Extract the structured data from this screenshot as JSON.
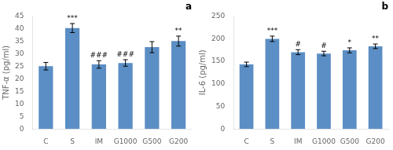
{
  "chart_data": [
    {
      "type": "bar",
      "title": "a",
      "categories": [
        "C",
        "S",
        "IM",
        "G1000",
        "G500",
        "G200"
      ],
      "values": [
        25.0,
        40.2,
        25.7,
        26.3,
        32.6,
        35.0
      ],
      "errors": [
        1.5,
        1.8,
        1.5,
        1.3,
        2.2,
        2.0
      ],
      "annotations": [
        null,
        "***",
        "###",
        "###",
        null,
        "**"
      ],
      "ylabel": "TNF-α (pg/ml)",
      "ylim": [
        0,
        45
      ],
      "yticks": [
        0,
        5,
        10,
        15,
        20,
        25,
        30,
        35,
        40,
        45
      ],
      "color": "#5b8ec4",
      "grid": false
    },
    {
      "type": "bar",
      "title": "b",
      "categories": [
        "C",
        "S",
        "IM",
        "G1000",
        "G500",
        "G200"
      ],
      "values": [
        143.0,
        199.5,
        170.0,
        167.0,
        174.0,
        183.0
      ],
      "errors": [
        5.0,
        6.0,
        5.5,
        5.0,
        5.5,
        5.0
      ],
      "annotations": [
        null,
        "***",
        "#",
        "#",
        "*",
        "**"
      ],
      "ylabel": "IL-6 (pg/ml)",
      "ylim": [
        0,
        250
      ],
      "yticks": [
        0,
        50,
        100,
        150,
        200,
        250
      ],
      "color": "#5b8ec4",
      "grid": false
    }
  ]
}
